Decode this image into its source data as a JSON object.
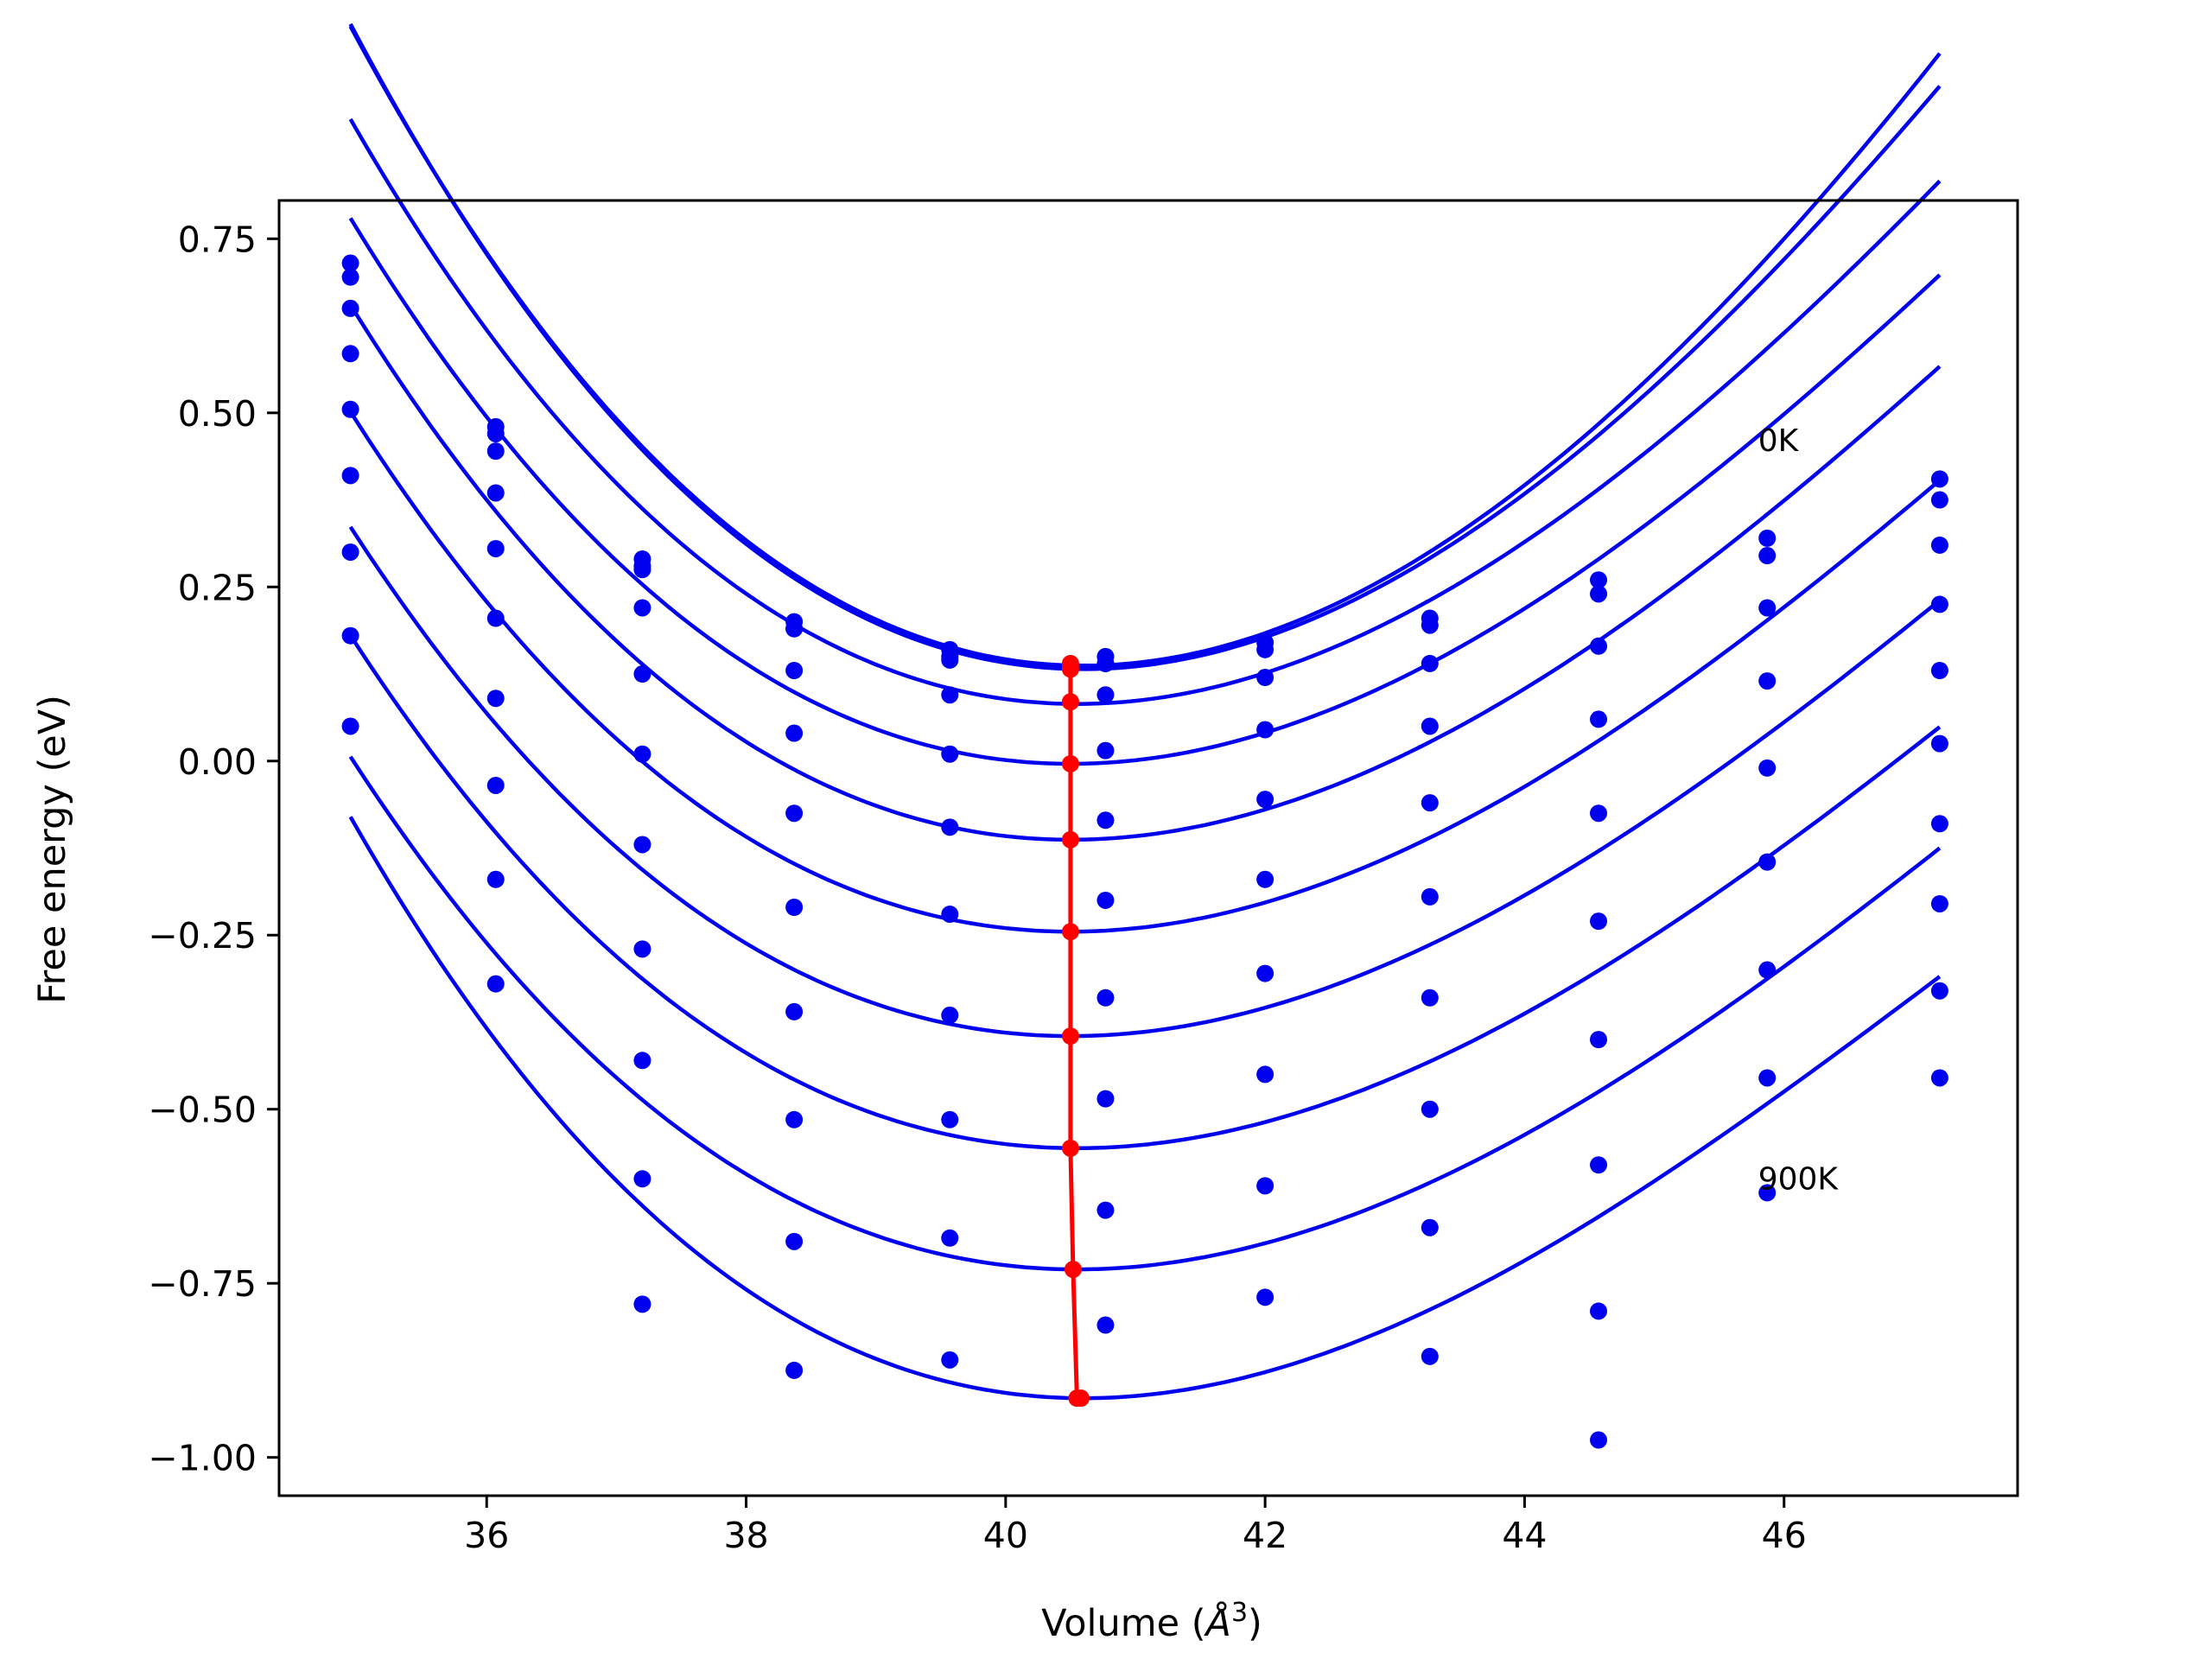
{
  "chart_data": {
    "type": "scatter",
    "title": "",
    "xlabel": "Volume (",
    "xlabel_symbol": "Å",
    "xlabel_exp": "3",
    "xlabel_close": ")",
    "ylabel": "Free energy (eV)",
    "xlim": [
      34.4,
      47.8
    ],
    "ylim": [
      -1.055,
      0.805
    ],
    "xticks": [
      36,
      38,
      40,
      42,
      44,
      46
    ],
    "xtick_labels": [
      "36",
      "38",
      "40",
      "42",
      "44",
      "46"
    ],
    "yticks": [
      0.75,
      0.5,
      0.25,
      0.0,
      -0.25,
      -0.5,
      -0.75,
      -1.0
    ],
    "ytick_labels": [
      "0.75",
      "0.50",
      "0.25",
      "0.00",
      "−0.25",
      "−0.50",
      "−0.75",
      "−1.00"
    ],
    "grid": false,
    "legend": "none",
    "annotations": [
      {
        "text": "0K",
        "x": 45.8,
        "y": 0.46
      },
      {
        "text": "900K",
        "x": 45.8,
        "y": -0.6
      }
    ],
    "colors": {
      "series": "#0000ee",
      "minimum": "#ff0000"
    },
    "x": [
      34.95,
      36.07,
      37.2,
      38.37,
      39.57,
      40.77,
      42.0,
      43.27,
      44.57,
      45.87,
      47.2
    ],
    "points": [
      [
        0.715,
        0.48,
        0.29,
        0.2,
        0.16,
        0.15,
        0.17,
        0.205,
        0.26,
        0.32,
        0.405
      ],
      [
        0.695,
        0.47,
        0.28,
        0.19,
        0.15,
        0.14,
        0.16,
        0.195,
        0.24,
        0.295,
        0.375
      ],
      [
        0.65,
        0.445,
        0.275,
        0.19,
        0.145,
        0.14,
        0.12,
        0.14,
        0.165,
        0.22,
        0.31
      ],
      [
        0.585,
        0.385,
        0.22,
        0.13,
        0.095,
        0.095,
        0.045,
        0.05,
        0.06,
        0.115,
        0.225
      ],
      [
        0.505,
        0.305,
        0.125,
        0.04,
        0.01,
        0.015,
        -0.055,
        -0.06,
        -0.075,
        -0.01,
        0.13
      ],
      [
        0.41,
        0.205,
        0.01,
        -0.075,
        -0.095,
        -0.085,
        -0.17,
        -0.195,
        -0.23,
        -0.145,
        0.025
      ],
      [
        0.3,
        0.09,
        -0.12,
        -0.21,
        -0.22,
        -0.2,
        -0.305,
        -0.34,
        -0.4,
        -0.3,
        -0.09
      ],
      [
        0.18,
        -0.035,
        -0.27,
        -0.36,
        -0.365,
        -0.34,
        -0.45,
        -0.5,
        -0.58,
        -0.455,
        -0.205
      ],
      [
        0.05,
        -0.17,
        -0.43,
        -0.515,
        -0.515,
        -0.485,
        -0.61,
        -0.67,
        -0.79,
        -0.62,
        -0.33
      ],
      [
        null,
        -0.32,
        -0.6,
        -0.69,
        -0.685,
        -0.645,
        -0.77,
        -0.855,
        -0.975,
        null,
        -0.455
      ],
      [
        null,
        null,
        -0.78,
        -0.875,
        -0.86,
        -0.81,
        null,
        null,
        null,
        null,
        null
      ]
    ],
    "fit_curves": [
      {
        "E0": 0.137,
        "V0": 40.6,
        "a": 0.0248,
        "b": -0.0007
      },
      {
        "E0": 0.132,
        "V0": 40.6,
        "a": 0.0245,
        "b": -0.0008
      },
      {
        "E0": 0.082,
        "V0": 40.55,
        "a": 0.0223,
        "b": -0.0008
      },
      {
        "E0": -0.004,
        "V0": 40.5,
        "a": 0.021,
        "b": -0.0008
      },
      {
        "E0": -0.113,
        "V0": 40.5,
        "a": 0.0205,
        "b": -0.0008
      },
      {
        "E0": -0.245,
        "V0": 40.5,
        "a": 0.0198,
        "b": -0.0008
      },
      {
        "E0": -0.395,
        "V0": 40.5,
        "a": 0.0193,
        "b": -0.0008
      },
      {
        "E0": -0.556,
        "V0": 40.55,
        "a": 0.019,
        "b": -0.0008
      },
      {
        "E0": -0.73,
        "V0": 40.55,
        "a": 0.019,
        "b": -0.0008
      },
      {
        "E0": -0.915,
        "V0": 40.6,
        "a": 0.0205,
        "b": -0.001
      }
    ],
    "minimum_path": {
      "x": [
        40.5,
        40.5,
        40.5,
        40.5,
        40.5,
        40.5,
        40.5,
        40.5,
        40.52,
        40.55,
        40.58
      ],
      "y": [
        0.14,
        0.132,
        0.085,
        -0.004,
        -0.113,
        -0.245,
        -0.395,
        -0.556,
        -0.73,
        -0.915,
        -0.915
      ]
    }
  }
}
